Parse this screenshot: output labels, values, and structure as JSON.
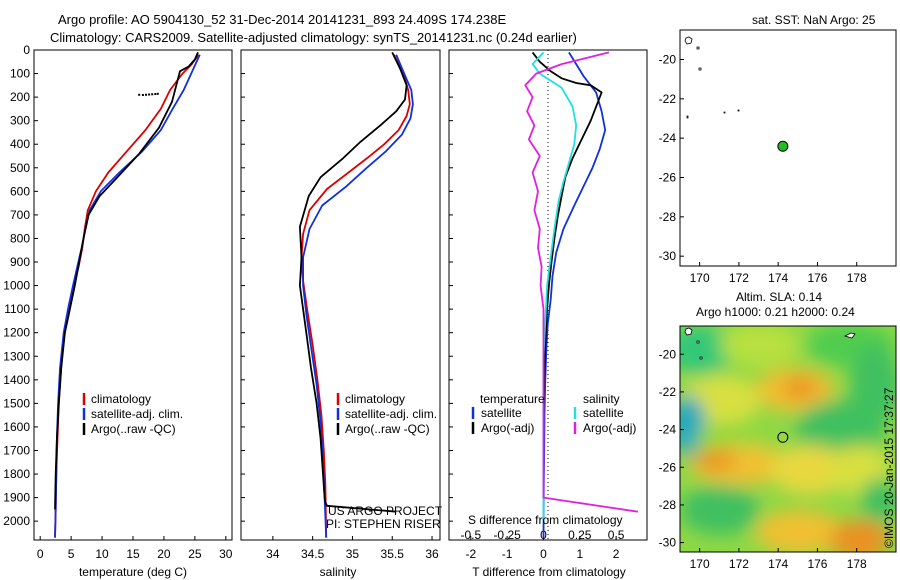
{
  "header": {
    "line1": "Argo profile: AO 5904130_52 31-Dec-2014 20141231_893 24.409S 174.238E",
    "line2": "Climatology: CARS2009. Satellite-adjusted climatology: synTS_20141231.nc (0.24d earlier)"
  },
  "colors": {
    "climatology": "#dd0000",
    "satellite": "#1030e0",
    "argo": "#000000",
    "sat_salinity": "#20e0e0",
    "argo_salinity": "#e020e0",
    "argo_marker": "#22bb22"
  },
  "chart_data": [
    {
      "id": "temperature",
      "type": "line",
      "xlabel": "temperature (deg C)",
      "xlim": [
        -1,
        31
      ],
      "ylim": [
        2080,
        0
      ],
      "yticks": [
        0,
        100,
        200,
        300,
        400,
        500,
        600,
        700,
        800,
        900,
        1000,
        1100,
        1200,
        1300,
        1400,
        1500,
        1600,
        1700,
        1800,
        1900,
        2000
      ],
      "ytick_labels": [
        "0",
        "100",
        "200",
        "300",
        "400",
        "500",
        "600",
        "700",
        "800",
        "900",
        "1000",
        "1100",
        "1200",
        "1300",
        "1400",
        "1500",
        "1600",
        "1700",
        "1800",
        "1900",
        "2000"
      ],
      "xticks": [
        0,
        5,
        10,
        15,
        20,
        25,
        30
      ],
      "xtick_labels": [
        "0",
        "5",
        "10",
        "15",
        "20",
        "25",
        "30"
      ],
      "legend": [
        "climatology",
        "satellite-adj. clim.",
        "Argo(..raw -QC)"
      ],
      "series": [
        {
          "name": "climatology",
          "color": "climatology",
          "x": [
            25.6,
            24.5,
            23,
            21,
            19.5,
            17,
            14,
            11,
            9,
            7.7,
            7.2,
            6.8,
            6.2,
            5.4,
            4.6,
            3.9,
            3.4,
            3.0,
            2.8,
            2.6,
            2.5,
            2.4
          ],
          "y": [
            20,
            60,
            100,
            170,
            250,
            340,
            430,
            520,
            600,
            680,
            760,
            840,
            920,
            1000,
            1100,
            1200,
            1350,
            1500,
            1650,
            1800,
            1950,
            2070
          ]
        },
        {
          "name": "satellite-adj. clim.",
          "color": "satellite",
          "x": [
            25.8,
            25.1,
            24.4,
            23.2,
            21.4,
            19.5,
            16.5,
            12.8,
            9.8,
            8.0,
            7.3,
            6.7,
            6.0,
            5.3,
            4.5,
            3.8,
            3.2,
            2.9,
            2.7,
            2.6,
            2.5,
            2.4
          ],
          "y": [
            20,
            60,
            100,
            170,
            250,
            340,
            430,
            520,
            600,
            680,
            760,
            840,
            920,
            1000,
            1100,
            1200,
            1350,
            1500,
            1650,
            1800,
            1950,
            2070
          ]
        },
        {
          "name": "Argo(..raw -QC)",
          "color": "argo",
          "x": [
            25.5,
            25.0,
            24.0,
            22.6,
            22.0,
            21.3,
            19.2,
            16.0,
            12.5,
            9.6,
            7.8,
            7.0,
            6.3,
            5.6,
            4.8,
            4.0,
            3.4,
            3.0,
            2.7,
            2.5,
            2.4
          ],
          "y": [
            10,
            40,
            70,
            90,
            150,
            220,
            330,
            440,
            540,
            620,
            700,
            800,
            900,
            1000,
            1100,
            1200,
            1350,
            1500,
            1650,
            1800,
            1950
          ]
        }
      ],
      "dots": {
        "x": [
          16,
          16.6,
          17.1,
          17.6,
          18.1,
          18.6,
          19.0
        ],
        "y": [
          190,
          191,
          190,
          189,
          188,
          187,
          186
        ]
      }
    },
    {
      "id": "salinity",
      "type": "line",
      "xlabel": "salinity",
      "xlim": [
        33.6,
        36.1
      ],
      "ylim": [
        2080,
        0
      ],
      "xticks": [
        34,
        34.5,
        35,
        35.5,
        36
      ],
      "xtick_labels": [
        "34",
        "34.5",
        "35",
        "35.5",
        "36"
      ],
      "legend": [
        "climatology",
        "satellite-adj. clim.",
        "Argo(..raw -QC)"
      ],
      "annotation": [
        "US ARGO PROJECT",
        "PI: STEPHEN RISER"
      ],
      "series": [
        {
          "name": "climatology",
          "color": "climatology",
          "x": [
            35.52,
            35.64,
            35.7,
            35.72,
            35.68,
            35.58,
            35.4,
            35.18,
            34.95,
            34.68,
            34.46,
            34.38,
            34.36,
            34.38,
            34.43,
            34.5,
            34.56,
            34.61,
            34.64,
            34.66,
            34.67
          ],
          "y": [
            20,
            100,
            170,
            230,
            280,
            340,
            400,
            460,
            520,
            590,
            680,
            780,
            880,
            980,
            1100,
            1250,
            1400,
            1550,
            1700,
            1850,
            2070
          ]
        },
        {
          "name": "satellite-adj. clim.",
          "color": "satellite",
          "x": [
            35.55,
            35.65,
            35.74,
            35.76,
            35.73,
            35.62,
            35.42,
            35.18,
            34.92,
            34.62,
            34.46,
            34.38,
            34.38,
            34.42,
            34.48,
            34.55,
            34.6,
            34.63,
            34.65,
            34.67
          ],
          "y": [
            20,
            100,
            170,
            230,
            290,
            360,
            430,
            500,
            580,
            660,
            760,
            880,
            1000,
            1120,
            1260,
            1420,
            1580,
            1750,
            1900,
            2070
          ]
        },
        {
          "name": "Argo(..raw -QC)",
          "color": "argo",
          "x": [
            35.5,
            35.6,
            35.68,
            35.66,
            35.55,
            35.35,
            35.1,
            34.88,
            34.6,
            34.45,
            34.34,
            34.36,
            34.34,
            34.38,
            34.42,
            34.48,
            34.55,
            34.6,
            34.63,
            34.65,
            34.66,
            34.68,
            35.55
          ],
          "y": [
            10,
            80,
            150,
            210,
            260,
            320,
            390,
            460,
            540,
            620,
            750,
            880,
            1000,
            1100,
            1200,
            1350,
            1500,
            1650,
            1800,
            1900,
            1920,
            1935,
            1960
          ]
        }
      ]
    },
    {
      "id": "difference",
      "type": "line",
      "xlabel": "T difference from climatology",
      "xlabel_top": "S difference from climatology",
      "xlim": [
        -2.6,
        2.85
      ],
      "ylim": [
        2080,
        0
      ],
      "xticks": [
        -2,
        -1,
        0,
        1,
        2
      ],
      "xtick_labels": [
        "-2",
        "-1",
        "0",
        "1",
        "2"
      ],
      "s_ticks": [
        -0.5,
        -0.25,
        0,
        0.25,
        0.5
      ],
      "s_tick_labels": [
        "-0.5",
        "-0.25",
        "0",
        "0.25",
        "0.5"
      ],
      "legend_headers": [
        "temperature",
        "salinity"
      ],
      "legend": [
        "satellite",
        "Argo(-adj)",
        "satellite",
        "Argo(-adj)"
      ],
      "series": [
        {
          "name": "temperature satellite",
          "color": "satellite",
          "x": [
            0.7,
            0.9,
            1.1,
            1.45,
            1.6,
            1.7,
            1.55,
            1.35,
            1.1,
            0.85,
            0.55,
            0.35,
            0.25,
            0.2,
            0.12,
            0.08,
            0.05,
            0.03,
            0.02,
            0.01,
            0.0
          ],
          "y": [
            10,
            60,
            110,
            180,
            260,
            340,
            420,
            500,
            580,
            660,
            760,
            860,
            960,
            1060,
            1160,
            1260,
            1400,
            1550,
            1700,
            1850,
            2070
          ]
        },
        {
          "name": "temperature Argo(-adj)",
          "color": "argo",
          "x": [
            -0.3,
            -0.1,
            0.2,
            0.5,
            0.9,
            1.3,
            1.6,
            1.5,
            1.3,
            1.05,
            0.8,
            0.6,
            0.5,
            0.4,
            0.3,
            0.22,
            0.15,
            0.1,
            0.05,
            0.02,
            0.0,
            0.0
          ],
          "y": [
            10,
            50,
            90,
            120,
            140,
            150,
            180,
            220,
            300,
            380,
            460,
            540,
            620,
            700,
            800,
            900,
            1000,
            1100,
            1250,
            1400,
            1600,
            1900
          ]
        },
        {
          "name": "salinity satellite",
          "color": "sat_salinity",
          "x": [
            0.0,
            -0.3,
            -0.1,
            0.5,
            0.8,
            0.9,
            0.85,
            0.7,
            0.55,
            0.42,
            0.3,
            0.2,
            0.1,
            0.05,
            0.0,
            0.0,
            0.0
          ],
          "y": [
            10,
            60,
            100,
            160,
            240,
            320,
            400,
            480,
            560,
            640,
            760,
            880,
            1000,
            1150,
            1300,
            1600,
            2000
          ]
        },
        {
          "name": "salinity Argo(-adj)",
          "color": "argo_salinity",
          "x": [
            1.8,
            0.5,
            -0.2,
            -0.5,
            -0.3,
            -0.45,
            -0.25,
            -0.4,
            -0.1,
            -0.3,
            -0.15,
            -0.25,
            -0.1,
            -0.15,
            -0.05,
            -0.08,
            0.0,
            0.0,
            0.0,
            0.0,
            2.6
          ],
          "y": [
            10,
            60,
            100,
            150,
            200,
            260,
            320,
            380,
            450,
            520,
            600,
            680,
            760,
            840,
            920,
            1000,
            1100,
            1300,
            1600,
            1900,
            1960
          ]
        }
      ]
    },
    {
      "id": "sst_map",
      "type": "scatter",
      "title": "sat. SST: NaN Argo: 25",
      "xlim": [
        169,
        180
      ],
      "ylim": [
        -30.5,
        -18.5
      ],
      "xticks": [
        170,
        172,
        174,
        176,
        178
      ],
      "xtick_labels": [
        "170",
        "172",
        "174",
        "176",
        "178"
      ],
      "yticks": [
        -20,
        -22,
        -24,
        -26,
        -28,
        -30
      ],
      "ytick_labels": [
        "-20",
        "-22",
        "-24",
        "-26",
        "-28",
        "-30"
      ],
      "x": [
        174.238
      ],
      "y": [
        -24.409
      ]
    },
    {
      "id": "sla_map",
      "type": "heatmap",
      "title_line1": "Altim. SLA: 0.14",
      "title_line2": "Argo h1000: 0.21 h2000: 0.24",
      "xlim": [
        169,
        180
      ],
      "ylim": [
        -30.5,
        -18.5
      ],
      "xticks": [
        170,
        172,
        174,
        176,
        178
      ],
      "xtick_labels": [
        "170",
        "172",
        "174",
        "176",
        "178"
      ],
      "yticks": [
        -20,
        -22,
        -24,
        -26,
        -28,
        -30
      ],
      "ytick_labels": [
        "-20",
        "-22",
        "-24",
        "-26",
        "-28",
        "-30"
      ],
      "x": [
        174.238
      ],
      "y": [
        -24.409
      ]
    }
  ],
  "footer": {
    "credit": "©IMOS 20-Jan-2015 17:37:27"
  }
}
